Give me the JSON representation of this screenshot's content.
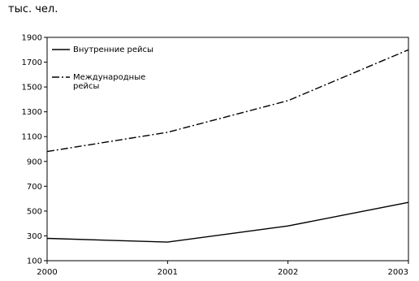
{
  "unit_label": "тыс. чел.",
  "chart_data": {
    "type": "line",
    "title": "",
    "xlabel": "",
    "ylabel": "тыс. чел.",
    "x": [
      "2000",
      "2001",
      "2002",
      "2003"
    ],
    "ylim": [
      100,
      1900
    ],
    "yticks": [
      100,
      300,
      500,
      700,
      900,
      1100,
      1300,
      1500,
      1700,
      1900
    ],
    "grid": false,
    "legend_position": "top-left",
    "series": [
      {
        "name": "Внутренние рейсы",
        "legend_lines": [
          "Внутренние рейсы"
        ],
        "style": "solid",
        "color": "#000000",
        "values": [
          280,
          250,
          380,
          570
        ]
      },
      {
        "name": "Международные рейсы",
        "legend_lines": [
          "Международные",
          "рейсы"
        ],
        "style": "dashdot",
        "color": "#000000",
        "values": [
          980,
          1135,
          1390,
          1800
        ]
      }
    ]
  }
}
